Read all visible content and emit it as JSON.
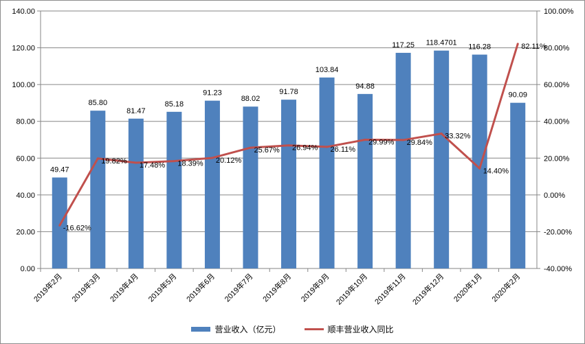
{
  "chart_data": {
    "type": "bar+line",
    "categories": [
      "2019年2月",
      "2019年3月",
      "2019年4月",
      "2019年5月",
      "2019年6月",
      "2019年7月",
      "2019年8月",
      "2019年9月",
      "2019年10月",
      "2019年11月",
      "2019年12月",
      "2020年1月",
      "2020年2月"
    ],
    "series": [
      {
        "name": "营业收入（亿元）",
        "type": "bar",
        "axis": "left",
        "color": "#4f81bd",
        "values": [
          49.47,
          85.8,
          81.47,
          85.18,
          91.23,
          88.02,
          91.78,
          103.84,
          94.88,
          117.25,
          118.4701,
          116.28,
          90.09
        ],
        "labels": [
          "49.47",
          "85.80",
          "81.47",
          "85.18",
          "91.23",
          "88.02",
          "91.78",
          "103.84",
          "94.88",
          "117.25",
          "118.4701",
          "116.28",
          "90.09"
        ]
      },
      {
        "name": "顺丰营业收入同比",
        "type": "line",
        "axis": "right",
        "color": "#c0504d",
        "values": [
          -16.62,
          19.82,
          17.48,
          18.39,
          20.12,
          25.67,
          26.94,
          26.11,
          29.99,
          29.84,
          33.32,
          14.4,
          82.11
        ],
        "labels": [
          "-16.62%",
          "19.82%",
          "17.48%",
          "18.39%",
          "20.12%",
          "25.67%",
          "26.94%",
          "26.11%",
          "29.99%",
          "29.84%",
          "33.32%",
          "14.40%",
          "82.11%"
        ]
      }
    ],
    "y_left": {
      "range": [
        0,
        140
      ],
      "ticks": [
        "0.00",
        "20.00",
        "40.00",
        "60.00",
        "80.00",
        "100.00",
        "120.00",
        "140.00"
      ]
    },
    "y_right": {
      "range": [
        -40,
        100
      ],
      "ticks": [
        "-40.00%",
        "-20.00%",
        "0.00%",
        "20.00%",
        "40.00%",
        "60.00%",
        "80.00%",
        "100.00%"
      ]
    },
    "grid": true,
    "legend": "bottom"
  }
}
